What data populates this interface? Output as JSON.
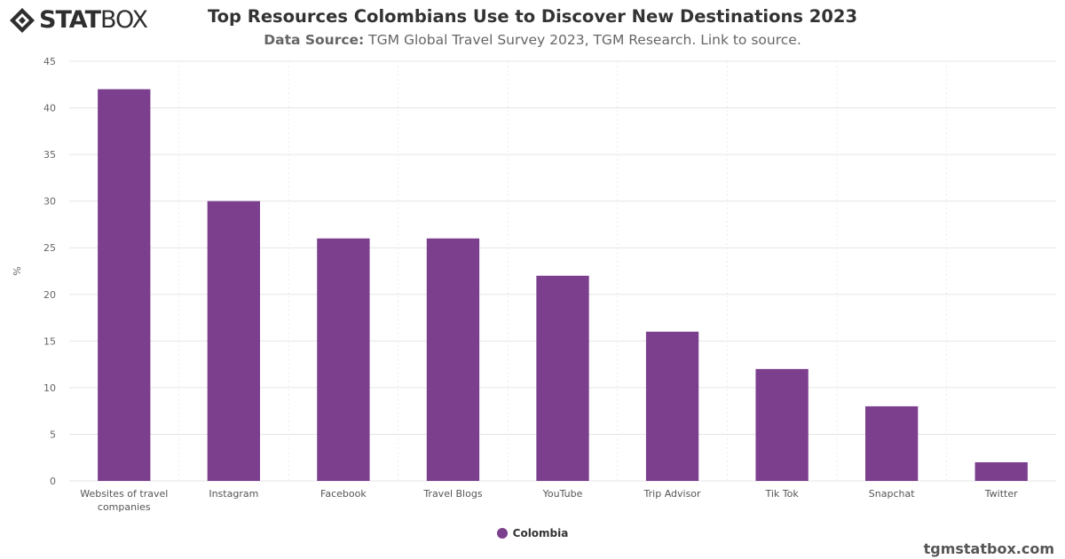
{
  "logo": {
    "text_bold": "STAT",
    "text_rest": "BOX"
  },
  "header": {
    "title": "Top Resources Colombians Use to Discover New Destinations 2023",
    "source_label": "Data Source:",
    "source_text": " TGM Global Travel Survey 2023, TGM Research. Link to source."
  },
  "credit": "tgmstatbox.com",
  "colors": {
    "bar": "#7b3f8e",
    "grid": "#e6e6e6",
    "axis_text": "#666666"
  },
  "chart_data": {
    "type": "bar",
    "title": "Top Resources Colombians Use to Discover New Destinations 2023",
    "xlabel": "",
    "ylabel": "%",
    "ylim": [
      0,
      45
    ],
    "yticks": [
      0,
      5,
      10,
      15,
      20,
      25,
      30,
      35,
      40,
      45
    ],
    "grid": true,
    "legend": "bottom-center",
    "categories": [
      "Websites of travel companies",
      "Instagram",
      "Facebook",
      "Travel Blogs",
      "YouTube",
      "Trip Advisor",
      "Tik Tok",
      "Snapchat",
      "Twitter"
    ],
    "series": [
      {
        "name": "Colombia",
        "values": [
          42,
          30,
          26,
          26,
          22,
          16,
          12,
          8,
          2
        ]
      }
    ]
  }
}
